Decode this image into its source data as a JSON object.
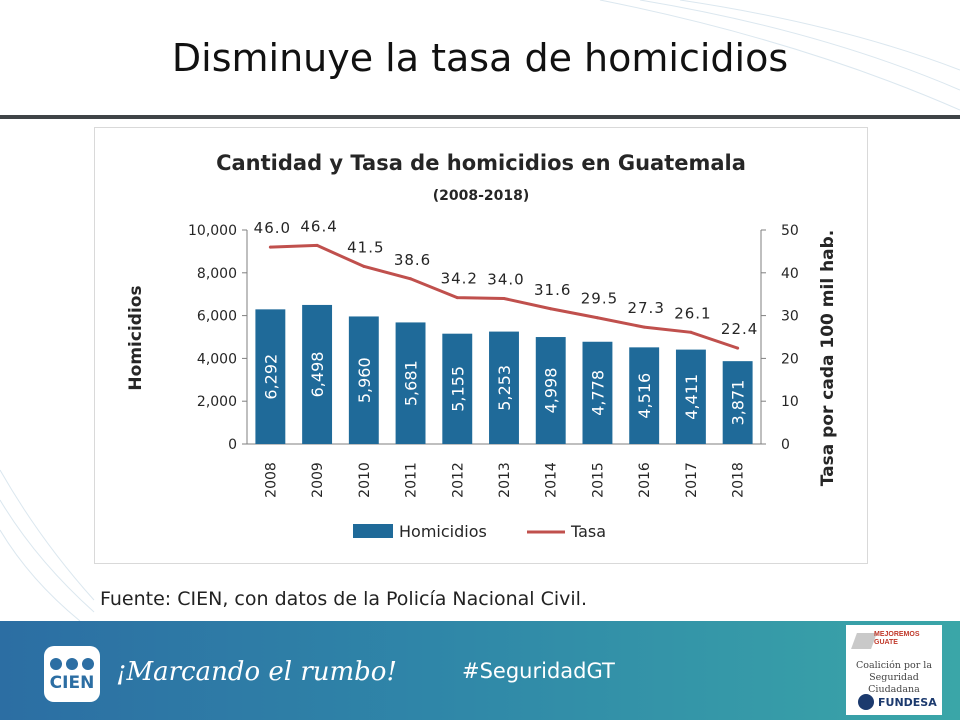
{
  "slide": {
    "title": "Disminuye la tasa de homicidios",
    "source": "Fuente: CIEN, con datos de la Policía Nacional Civil."
  },
  "colors": {
    "bar": "#1f6a99",
    "line": "#c0504d",
    "footer_start": "#2c6ea3",
    "footer_end": "#3aa6a8"
  },
  "chart_data": {
    "type": "bar",
    "title": "Cantidad y Tasa de homicidios en Guatemala",
    "subtitle": "(2008-2018)",
    "categories": [
      "2008",
      "2009",
      "2010",
      "2011",
      "2012",
      "2013",
      "2014",
      "2015",
      "2016",
      "2017",
      "2018"
    ],
    "series": [
      {
        "name": "Homicidios",
        "type": "bar",
        "axis": "left",
        "values": [
          6292,
          6498,
          5960,
          5681,
          5155,
          5253,
          4998,
          4778,
          4516,
          4411,
          3871
        ],
        "labels": [
          "6,292",
          "6,498",
          "5,960",
          "5,681",
          "5,155",
          "5,253",
          "4,998",
          "4,778",
          "4,516",
          "4,411",
          "3,871"
        ]
      },
      {
        "name": "Tasa",
        "type": "line",
        "axis": "right",
        "values": [
          46.0,
          46.4,
          41.5,
          38.6,
          34.2,
          34.0,
          31.6,
          29.5,
          27.3,
          26.1,
          22.4
        ],
        "labels": [
          "46.0",
          "46.4",
          "41.5",
          "38.6",
          "34.2",
          "34.0",
          "31.6",
          "29.5",
          "27.3",
          "26.1",
          "22.4"
        ]
      }
    ],
    "ylabel": "Homicidios",
    "y2label": "Tasa por cada 100 mil hab.",
    "ylim": [
      0,
      10000
    ],
    "y2lim": [
      0,
      50
    ],
    "yticks": [
      "0",
      "2,000",
      "4,000",
      "6,000",
      "8,000",
      "10,000"
    ],
    "y2ticks": [
      "0",
      "10",
      "20",
      "30",
      "40",
      "50"
    ],
    "legend": [
      {
        "name": "Homicidios",
        "kind": "bar"
      },
      {
        "name": "Tasa",
        "kind": "line"
      }
    ],
    "legend_position": "bottom"
  },
  "footer": {
    "logo_text": "CIEN",
    "slogan": "¡Marcando el rumbo!",
    "hashtag": "#SeguridadGT",
    "partner_small": "MEJOREMOS GUATE",
    "partner_name_line1": "Coalición por la",
    "partner_name_line2": "Seguridad Ciudadana",
    "partner_org": "FUNDESA"
  }
}
